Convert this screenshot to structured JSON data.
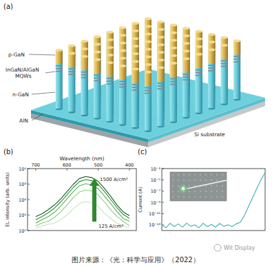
{
  "panels": [
    "(a)",
    "(b)",
    "(c)"
  ],
  "diagram": {
    "labels": [
      "p-GaN",
      "InGaN/AlGaN MQWs",
      "n-GaN",
      "AlN",
      "Si substrate"
    ]
  },
  "chart_data": [
    {
      "type": "line",
      "x_label": "Wavelength (nm)",
      "y_label": "EL intensity (arb. units)",
      "log": "y",
      "grid": false,
      "xlim": [
        726,
        378
      ],
      "xticks": [
        700,
        600,
        500,
        400
      ],
      "ylim": [
        1,
        10000
      ],
      "yticks": [
        {
          "value": 1,
          "label": "10⁰"
        },
        {
          "value": 10,
          "label": "10¹"
        },
        {
          "value": 100,
          "label": "10²"
        },
        {
          "value": 1000,
          "label": "10³"
        },
        {
          "value": 10000,
          "label": "10⁴"
        }
      ],
      "x": [
        700,
        680,
        660,
        640,
        620,
        600,
        580,
        560,
        540,
        520,
        500,
        480,
        460,
        440,
        420,
        400
      ],
      "series": [
        {
          "color": "#0d5c1a",
          "values": [
            8,
            12,
            22,
            45,
            110,
            320,
            950,
            2300,
            3100,
            2600,
            1500,
            520,
            160,
            45,
            16,
            9
          ]
        },
        {
          "color": "#2b8a36",
          "values": [
            5,
            8,
            14,
            28,
            70,
            200,
            600,
            1450,
            1950,
            1650,
            950,
            330,
            100,
            30,
            11,
            6
          ]
        },
        {
          "color": "#5aad55",
          "values": [
            3,
            5,
            8,
            15,
            38,
            110,
            320,
            780,
            1050,
            880,
            500,
            170,
            55,
            17,
            6,
            4
          ]
        },
        {
          "color": "#8fcd84",
          "values": [
            2,
            3,
            4,
            7,
            16,
            45,
            130,
            310,
            420,
            350,
            200,
            70,
            22,
            8,
            4,
            2
          ]
        },
        {
          "color": "#c3e6bb",
          "values": [
            1.5,
            2,
            2.5,
            3,
            5,
            10,
            25,
            55,
            75,
            62,
            36,
            13,
            6,
            3,
            2,
            1.5
          ]
        }
      ],
      "annotations": [
        "1500 A/cm²",
        "125 A/cm²"
      ]
    },
    {
      "type": "line",
      "y_label": "Current (A)",
      "log": "y",
      "grid": false,
      "tick_labels": "y",
      "xlim": [
        -4,
        6
      ],
      "ylim": [
        1e-14,
        0.001
      ],
      "yticks": [
        {
          "value": 1e-13,
          "label": "10⁻¹³"
        },
        {
          "value": 1e-11,
          "label": "10⁻¹¹"
        },
        {
          "value": 1e-09,
          "label": "10⁻⁹"
        },
        {
          "value": 1e-07,
          "label": "10⁻⁷"
        },
        {
          "value": 1e-05,
          "label": "10⁻⁵"
        },
        {
          "value": 0.001,
          "label": "10⁻³"
        }
      ],
      "x": [
        -4,
        -3.6,
        -3.2,
        -2.8,
        -2.4,
        -2,
        -1.6,
        -1.2,
        -0.8,
        -0.4,
        0,
        0.4,
        0.8,
        1.2,
        1.6,
        2,
        2.4,
        2.8,
        3.2,
        3.6,
        4,
        4.4,
        4.8,
        5.2,
        5.6,
        6
      ],
      "series": [
        {
          "color": "#3bb3a8",
          "values": [
            1e-13,
            3e-14,
            2e-13,
            5e-14,
            1.5e-13,
            4e-14,
            2e-13,
            6e-14,
            1e-13,
            3e-14,
            2e-13,
            5e-14,
            1.2e-13,
            4e-14,
            1.8e-13,
            6e-14,
            1e-13,
            5e-14,
            1.5e-13,
            3e-13,
            5e-12,
            2e-10,
            8e-09,
            3e-07,
            1e-05,
            0.0002
          ]
        }
      ]
    }
  ],
  "watermark": "Wit Display",
  "caption": "图片来源：《光：科学与应用》（2022）"
}
